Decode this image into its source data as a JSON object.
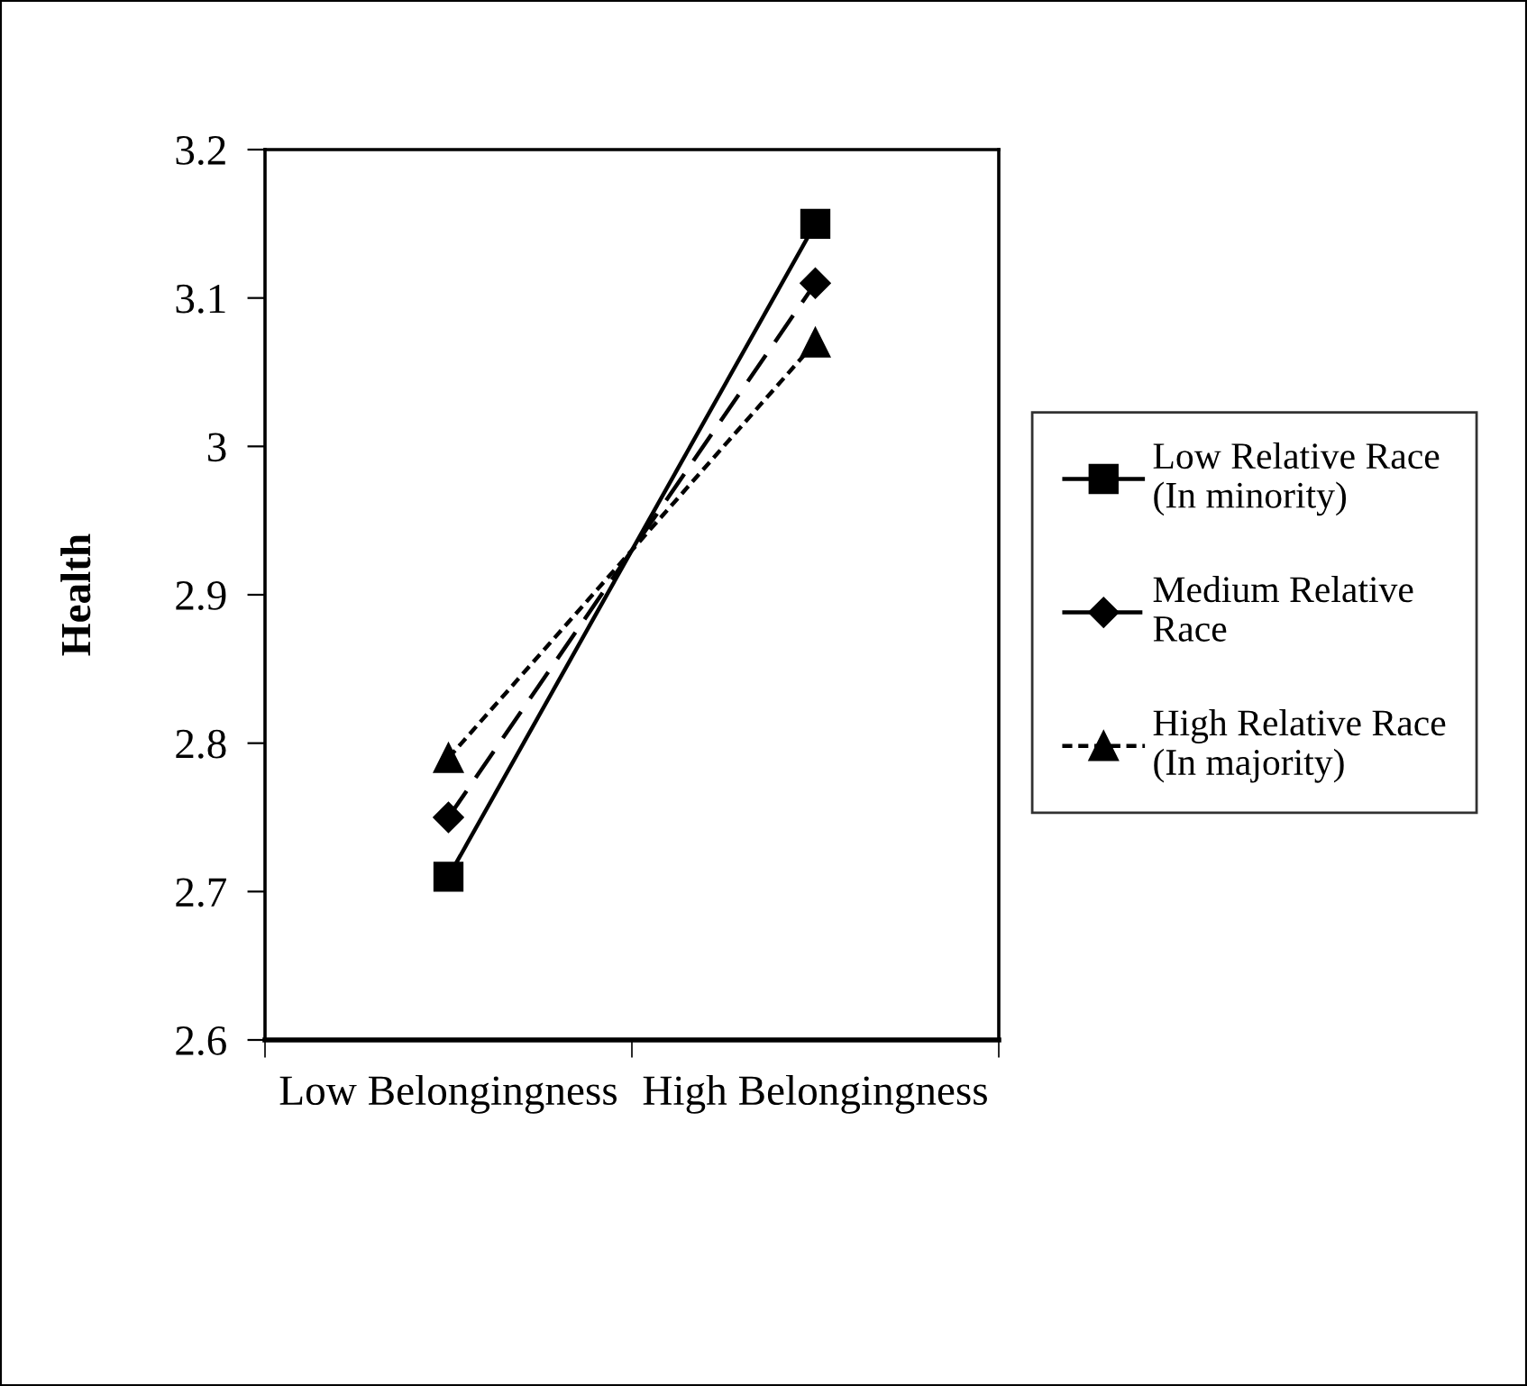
{
  "chart_data": {
    "type": "line",
    "ylabel": "Health",
    "categories": [
      "Low Belongingness",
      "High Belongingness"
    ],
    "series": [
      {
        "name": "Low Relative Race\n(In minority)",
        "color": "#000000",
        "values": [
          2.71,
          3.15
        ],
        "marker": "square",
        "line_style": "solid"
      },
      {
        "name": "Medium Relative\nRace",
        "color": "#000000",
        "values": [
          2.75,
          3.11
        ],
        "marker": "diamond",
        "line_style": "dashed"
      },
      {
        "name": "High Relative Race\n(In majority)",
        "color": "#000000",
        "values": [
          2.79,
          3.07
        ],
        "marker": "triangle",
        "line_style": "dotted"
      }
    ],
    "ylim": [
      2.6,
      3.2
    ],
    "yticks": [
      2.6,
      2.7,
      2.8,
      2.9,
      3,
      3.1,
      3.2
    ],
    "grid": false,
    "legend": "right"
  }
}
